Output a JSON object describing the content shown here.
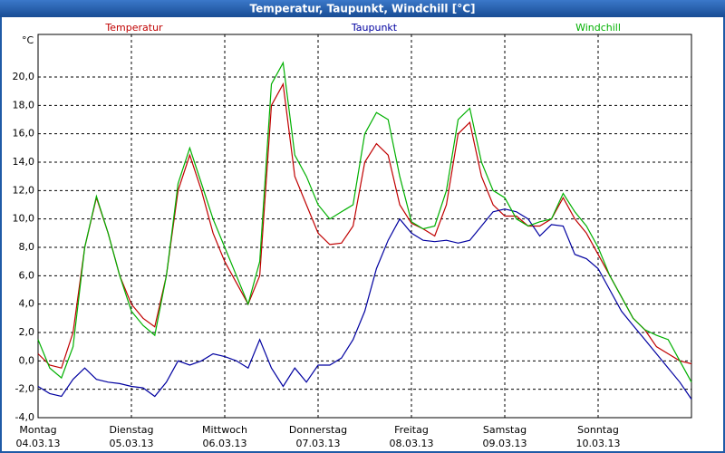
{
  "window_title": "Temperatur, Taupunkt, Windchill [°C]",
  "chart_data": {
    "type": "line",
    "y_label": "°C",
    "x": [
      0,
      0.125,
      0.25,
      0.375,
      0.5,
      0.625,
      0.75,
      0.875,
      1,
      1.125,
      1.25,
      1.375,
      1.5,
      1.625,
      1.75,
      1.875,
      2,
      2.125,
      2.25,
      2.375,
      2.5,
      2.625,
      2.75,
      2.875,
      3,
      3.125,
      3.25,
      3.375,
      3.5,
      3.625,
      3.75,
      3.875,
      4,
      4.125,
      4.25,
      4.375,
      4.5,
      4.625,
      4.75,
      4.875,
      5,
      5.125,
      5.25,
      5.375,
      5.5,
      5.625,
      5.75,
      5.875,
      6,
      6.125,
      6.25,
      6.375,
      6.5,
      6.625,
      6.75,
      6.875,
      7
    ],
    "series": [
      {
        "name": "Temperatur",
        "color": "#c00000",
        "values": [
          0.5,
          -0.3,
          -0.5,
          2,
          8,
          11.5,
          9,
          6,
          4,
          3,
          2.4,
          6,
          12,
          14.5,
          12,
          9,
          7,
          5.5,
          4,
          6,
          18,
          19.5,
          13,
          11,
          9,
          8.2,
          8.3,
          9.5,
          14,
          15.3,
          14.5,
          11,
          9.7,
          9.3,
          8.8,
          11,
          16,
          16.8,
          13,
          11,
          10.2,
          10.2,
          9.5,
          9.5,
          10,
          11.5,
          10,
          9,
          7.5,
          6,
          4.5,
          3,
          2.2,
          1,
          0.5,
          0,
          -0.2
        ]
      },
      {
        "name": "Taupunkt",
        "color": "#0000a0",
        "values": [
          -1.8,
          -2.3,
          -2.5,
          -1.3,
          -0.5,
          -1.3,
          -1.5,
          -1.6,
          -1.8,
          -1.9,
          -2.5,
          -1.5,
          0,
          -0.3,
          0,
          0.5,
          0.3,
          0,
          -0.5,
          1.5,
          -0.5,
          -1.8,
          -0.5,
          -1.5,
          -0.3,
          -0.3,
          0.2,
          1.5,
          3.5,
          6.5,
          8.5,
          10,
          9,
          8.5,
          8.4,
          8.5,
          8.3,
          8.5,
          9.5,
          10.5,
          10.7,
          10.5,
          10,
          8.8,
          9.6,
          9.5,
          7.5,
          7.2,
          6.5,
          5,
          3.5,
          2.5,
          1.5,
          0.5,
          -0.5,
          -1.5,
          -2.7
        ]
      },
      {
        "name": "Windchill",
        "color": "#00b000",
        "values": [
          1.5,
          -0.5,
          -1.2,
          1,
          8,
          11.6,
          9,
          6,
          3.5,
          2.5,
          1.8,
          6,
          12.5,
          15,
          12.5,
          10,
          8,
          6,
          4,
          7,
          19.5,
          21,
          14.5,
          13,
          11,
          10,
          10.5,
          11,
          16,
          17.5,
          17,
          13,
          9.8,
          9.3,
          9.5,
          12,
          17,
          17.8,
          14,
          12,
          11.5,
          10,
          9.5,
          9.8,
          10,
          11.8,
          10.5,
          9.5,
          8,
          6,
          4.5,
          3,
          2.2,
          1.8,
          1.5,
          0,
          -1.5
        ]
      }
    ],
    "xlim": [
      0,
      7
    ],
    "xticks": [
      {
        "value": 0,
        "label": "Montag"
      },
      {
        "value": 1,
        "label": "Dienstag"
      },
      {
        "value": 2,
        "label": "Mittwoch"
      },
      {
        "value": 3,
        "label": "Donnerstag"
      },
      {
        "value": 4,
        "label": "Freitag"
      },
      {
        "value": 5,
        "label": "Samstag"
      },
      {
        "value": 6,
        "label": "Sonntag"
      }
    ],
    "xtick_dates": [
      "04.03.13",
      "05.03.13",
      "06.03.13",
      "07.03.13",
      "08.03.13",
      "09.03.13",
      "10.03.13"
    ],
    "ylim": [
      -4,
      23
    ],
    "yticks": [
      {
        "value": -4,
        "label": "-4,0"
      },
      {
        "value": -2,
        "label": "-2,0"
      },
      {
        "value": 0,
        "label": "0,0"
      },
      {
        "value": 2,
        "label": "2,0"
      },
      {
        "value": 4,
        "label": "4,0"
      },
      {
        "value": 6,
        "label": "6,0"
      },
      {
        "value": 8,
        "label": "8,0"
      },
      {
        "value": 10,
        "label": "10,0"
      },
      {
        "value": 12,
        "label": "12,0"
      },
      {
        "value": 14,
        "label": "14,0"
      },
      {
        "value": 16,
        "label": "16,0"
      },
      {
        "value": 18,
        "label": "18,0"
      },
      {
        "value": 20,
        "label": "20,0"
      }
    ],
    "grid": true
  }
}
